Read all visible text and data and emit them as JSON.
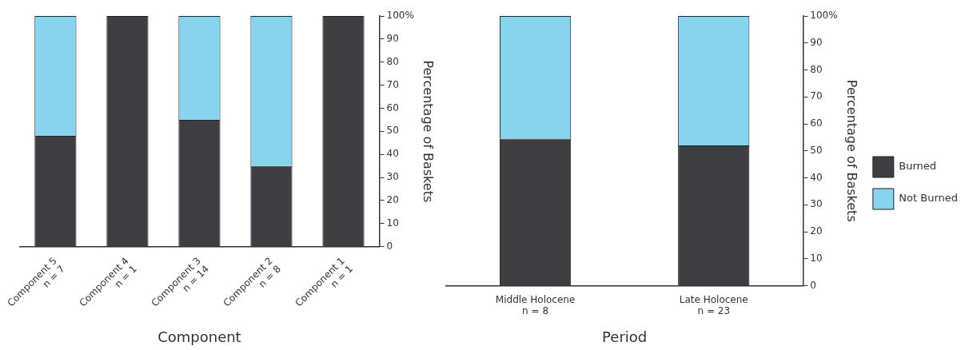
{
  "chart_data": [
    {
      "type": "bar",
      "stacked": true,
      "xlabel": "Component",
      "ylabel": "Percentage of Baskets",
      "categories": [
        "Component 5\nn = 7",
        "Component 4\nn = 1",
        "Component 3\nn = 14",
        "Component 2\nn = 8",
        "Component 1\nn = 1"
      ],
      "series": [
        {
          "color": "#3d3e42",
          "values": [
            48,
            100,
            55,
            35,
            100
          ]
        },
        {
          "color": "#87d4ee",
          "values": [
            52,
            0,
            45,
            65,
            0
          ]
        }
      ],
      "ylim": [
        0,
        100
      ],
      "yticks": [
        0,
        10,
        20,
        30,
        40,
        50,
        60,
        70,
        80,
        90,
        {
          "value": 100,
          "label": "100%"
        }
      ],
      "grid": false,
      "legend": false
    },
    {
      "type": "bar",
      "stacked": true,
      "xlabel": "Period",
      "ylabel": "Percentage of Baskets",
      "categories": [
        "Middle Holocene\nn = 8",
        "Late Holocene\nn = 23"
      ],
      "series": [
        {
          "name": "Burned",
          "color": "#3d3e42",
          "values": [
            54.5,
            52
          ]
        },
        {
          "name": "Not Burned",
          "color": "#87d4ee",
          "values": [
            45.5,
            48
          ]
        }
      ],
      "ylim": [
        0,
        100
      ],
      "yticks": [
        0,
        10,
        20,
        30,
        40,
        50,
        60,
        70,
        80,
        90,
        {
          "value": 100,
          "label": "100%"
        }
      ],
      "grid": false,
      "legend": "right"
    }
  ]
}
